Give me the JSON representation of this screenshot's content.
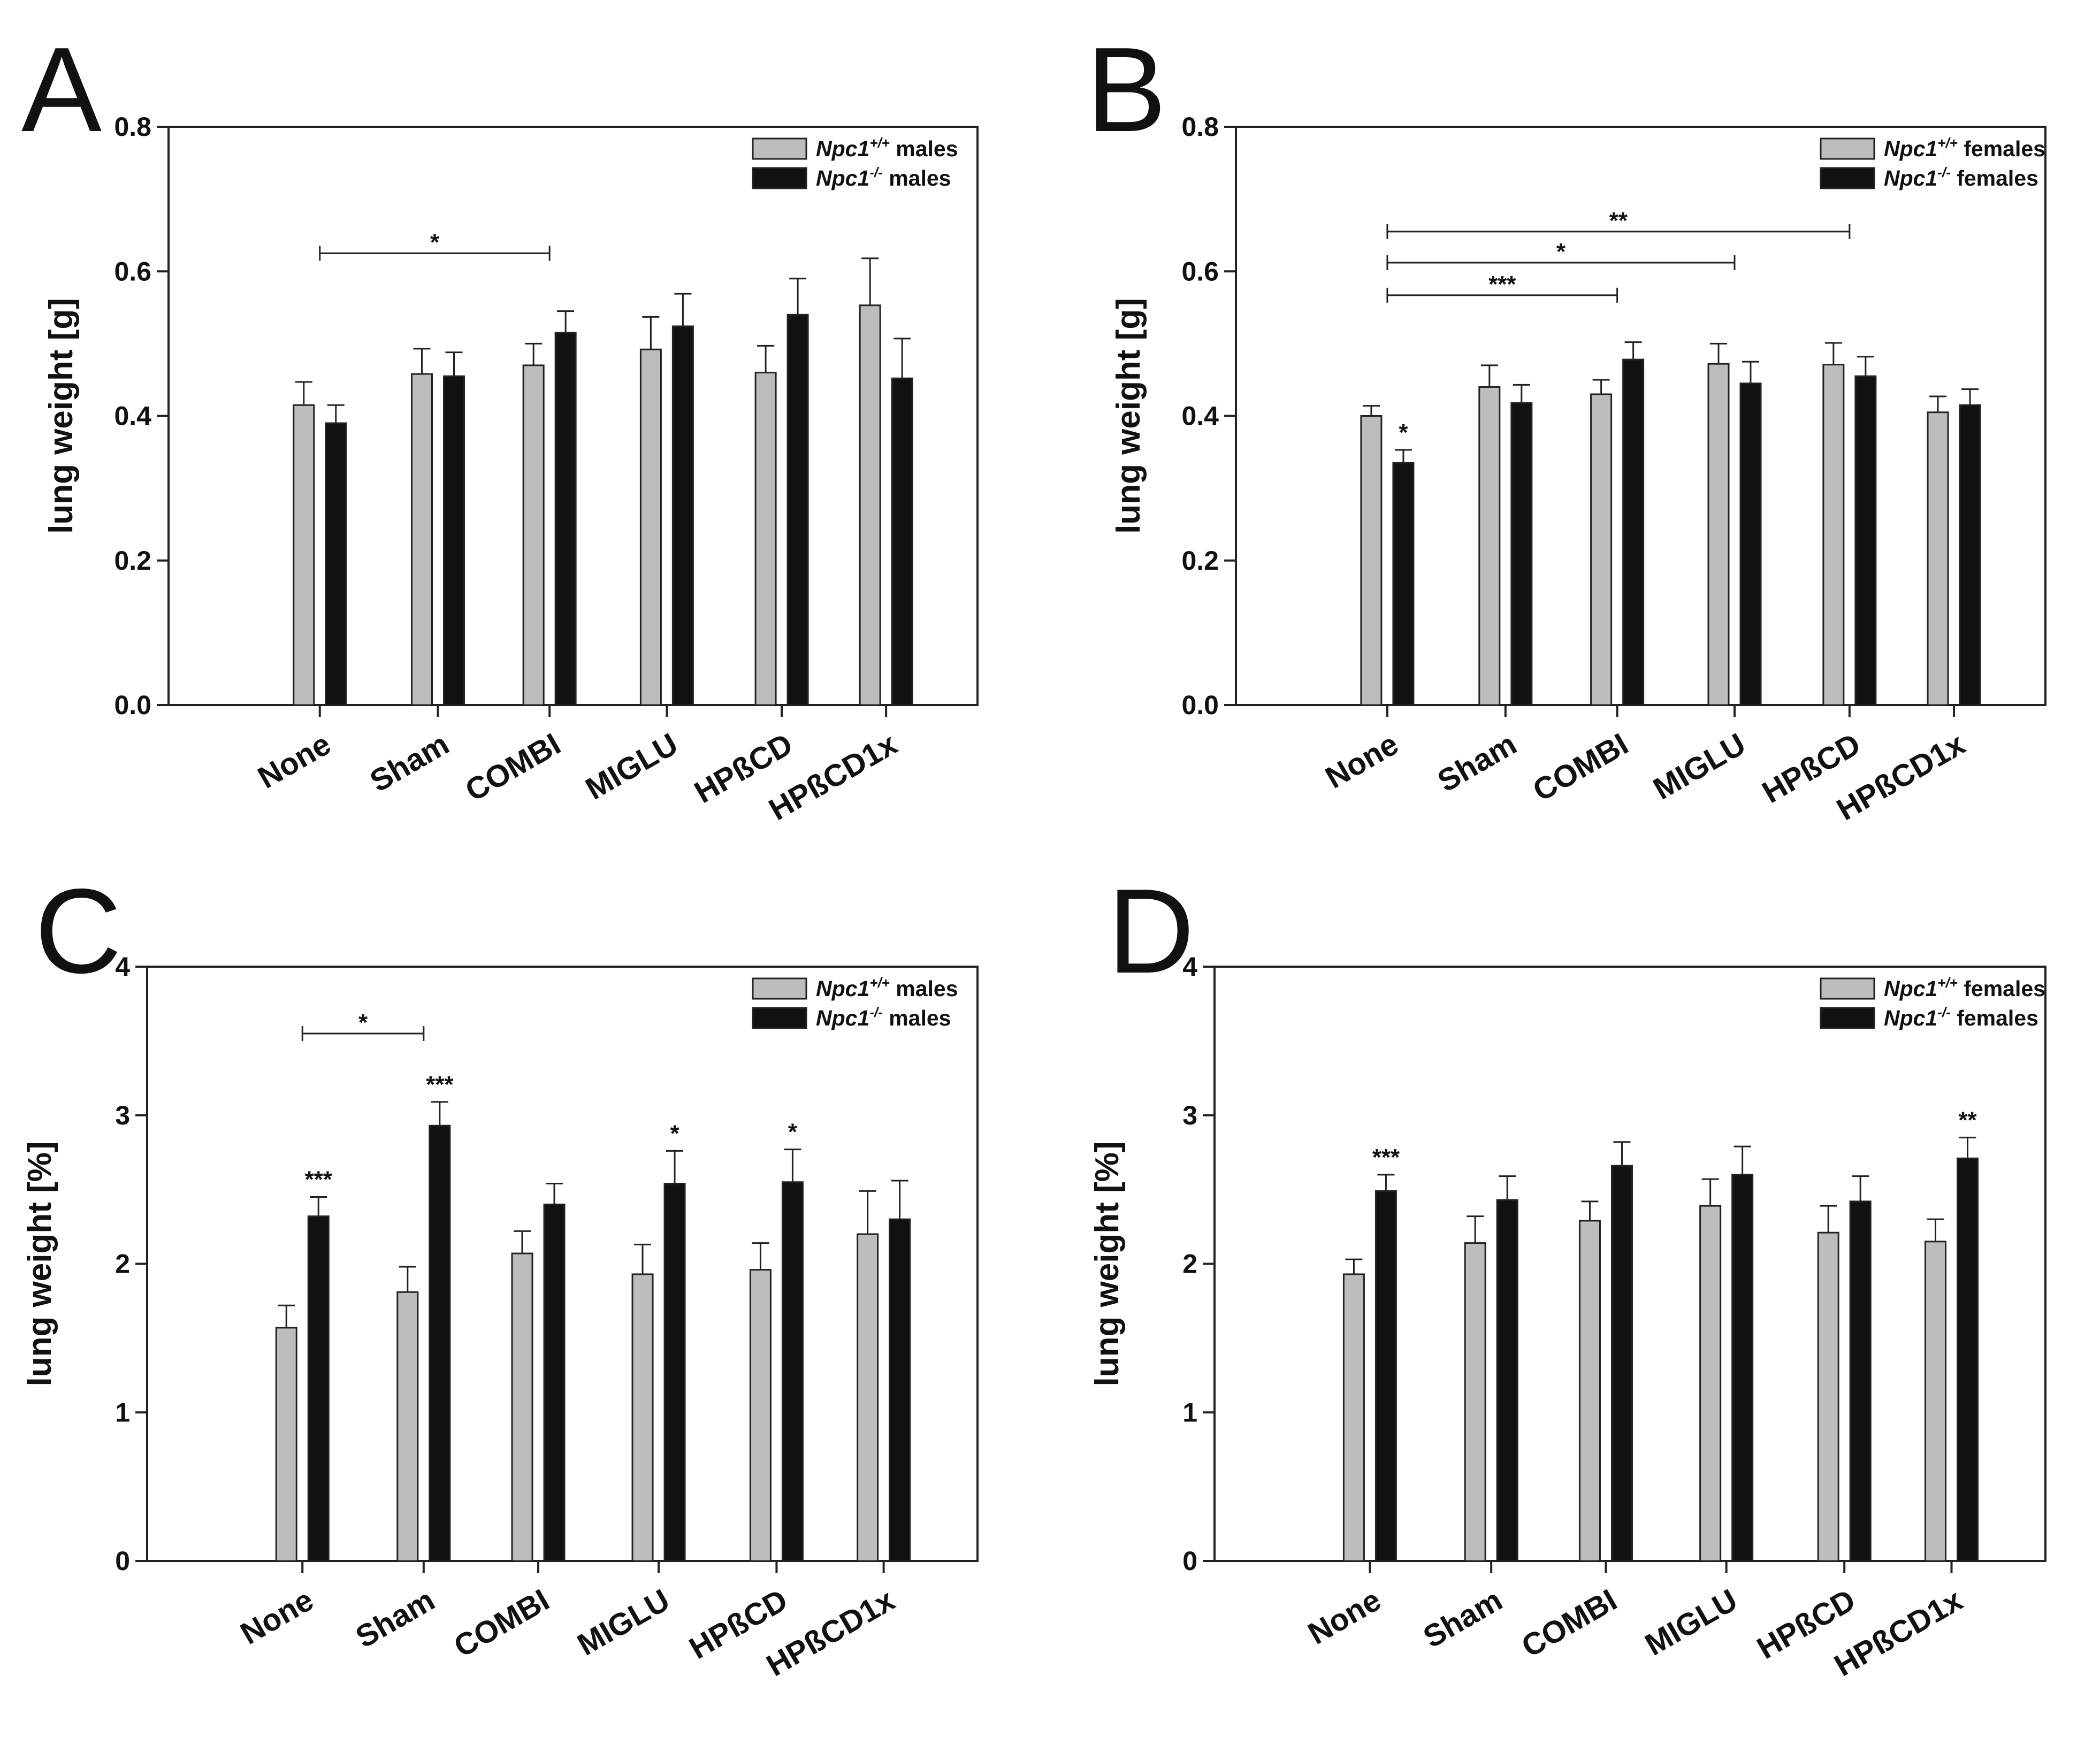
{
  "figure": {
    "colors": {
      "wildtype": "#bdbdbd",
      "knockout": "#111111",
      "axis": "#222222"
    }
  },
  "chart_data": [
    {
      "panel": "A",
      "type": "bar",
      "ylabel": "lung weight [g]",
      "ylim": [
        0,
        0.8
      ],
      "yticks": [
        "0.0",
        "0.2",
        "0.4",
        "0.6",
        "0.8"
      ],
      "categories": [
        "None",
        "Sham",
        "COMBI",
        "MIGLU",
        "HPßCD",
        "HPßCD1x"
      ],
      "legend_position": "top-right",
      "series": [
        {
          "name": "Npc1+/+ males",
          "legend_italic": "Npc1",
          "legend_sup": "+/+",
          "legend_rest": "males",
          "values": [
            0.415,
            0.458,
            0.47,
            0.492,
            0.46,
            0.553
          ],
          "errors": [
            0.032,
            0.035,
            0.03,
            0.045,
            0.037,
            0.065
          ]
        },
        {
          "name": "Npc1-/- males",
          "legend_italic": "Npc1",
          "legend_sup": "-/-",
          "legend_rest": " males",
          "values": [
            0.39,
            0.455,
            0.515,
            0.524,
            0.54,
            0.452
          ],
          "errors": [
            0.025,
            0.033,
            0.03,
            0.045,
            0.05,
            0.055
          ]
        }
      ],
      "markers": [],
      "brackets": [
        {
          "from": 0,
          "to": 2,
          "y": 0.625,
          "label": "*"
        }
      ]
    },
    {
      "panel": "B",
      "type": "bar",
      "ylabel": "lung weight [g]",
      "ylim": [
        0,
        0.8
      ],
      "yticks": [
        "0.0",
        "0.2",
        "0.4",
        "0.6",
        "0.8"
      ],
      "categories": [
        "None",
        "Sham",
        "COMBI",
        "MIGLU",
        "HPßCD",
        "HPßCD1x"
      ],
      "legend_position": "top-right",
      "series": [
        {
          "name": "Npc1+/+ females",
          "legend_italic": "Npc1",
          "legend_sup": "+/+",
          "legend_rest": "females",
          "values": [
            0.4,
            0.44,
            0.43,
            0.472,
            0.471,
            0.405
          ],
          "errors": [
            0.014,
            0.03,
            0.02,
            0.028,
            0.03,
            0.022
          ]
        },
        {
          "name": "Npc1-/- females",
          "legend_italic": "Npc1",
          "legend_sup": "-/-",
          "legend_rest": " females",
          "values": [
            0.335,
            0.418,
            0.478,
            0.445,
            0.455,
            0.415
          ],
          "errors": [
            0.018,
            0.025,
            0.024,
            0.03,
            0.027,
            0.022
          ]
        }
      ],
      "markers": [
        {
          "category": 0,
          "series": 1,
          "label": "*"
        }
      ],
      "brackets": [
        {
          "from": 0,
          "to": 4,
          "y": 0.655,
          "label": "**"
        },
        {
          "from": 0,
          "to": 3,
          "y": 0.612,
          "label": "*"
        },
        {
          "from": 0,
          "to": 2,
          "y": 0.567,
          "label": "***"
        }
      ]
    },
    {
      "panel": "C",
      "type": "bar",
      "ylabel": "lung weight [%]",
      "ylim": [
        0,
        4
      ],
      "yticks": [
        "0",
        "1",
        "2",
        "3",
        "4"
      ],
      "categories": [
        "None",
        "Sham",
        "COMBI",
        "MIGLU",
        "HPßCD",
        "HPßCD1x"
      ],
      "legend_position": "top-right",
      "series": [
        {
          "name": "Npc1+/+ males",
          "legend_italic": "Npc1",
          "legend_sup": "+/+",
          "legend_rest": "males",
          "values": [
            1.57,
            1.81,
            2.07,
            1.93,
            1.96,
            2.2
          ],
          "errors": [
            0.15,
            0.17,
            0.15,
            0.2,
            0.18,
            0.29
          ]
        },
        {
          "name": "Npc1-/- males",
          "legend_italic": "Npc1",
          "legend_sup": "-/-",
          "legend_rest": " males",
          "values": [
            2.32,
            2.93,
            2.4,
            2.54,
            2.55,
            2.3
          ],
          "errors": [
            0.13,
            0.16,
            0.14,
            0.22,
            0.22,
            0.26
          ]
        }
      ],
      "markers": [
        {
          "category": 0,
          "series": 1,
          "label": "***"
        },
        {
          "category": 1,
          "series": 1,
          "label": "***"
        },
        {
          "category": 3,
          "series": 1,
          "label": "*"
        },
        {
          "category": 4,
          "series": 1,
          "label": "*"
        }
      ],
      "brackets": [
        {
          "from": 0,
          "to": 1,
          "y": 3.55,
          "label": "*"
        }
      ]
    },
    {
      "panel": "D",
      "type": "bar",
      "ylabel": "lung weight [%]",
      "ylim": [
        0,
        4
      ],
      "yticks": [
        "0",
        "1",
        "2",
        "3",
        "4"
      ],
      "categories": [
        "None",
        "Sham",
        "COMBI",
        "MIGLU",
        "HPßCD",
        "HPßCD1x"
      ],
      "legend_position": "top-right",
      "series": [
        {
          "name": "Npc1+/+ females",
          "legend_italic": "Npc1",
          "legend_sup": "+/+",
          "legend_rest": "females",
          "values": [
            1.93,
            2.14,
            2.29,
            2.39,
            2.21,
            2.15
          ],
          "errors": [
            0.1,
            0.18,
            0.13,
            0.18,
            0.18,
            0.15
          ]
        },
        {
          "name": "Npc1-/- females",
          "legend_italic": "Npc1",
          "legend_sup": "-/-",
          "legend_rest": " females",
          "values": [
            2.49,
            2.43,
            2.66,
            2.6,
            2.42,
            2.71
          ],
          "errors": [
            0.11,
            0.16,
            0.16,
            0.19,
            0.17,
            0.14
          ]
        }
      ],
      "markers": [
        {
          "category": 0,
          "series": 1,
          "label": "***"
        },
        {
          "category": 5,
          "series": 1,
          "label": "**"
        }
      ],
      "brackets": []
    }
  ]
}
